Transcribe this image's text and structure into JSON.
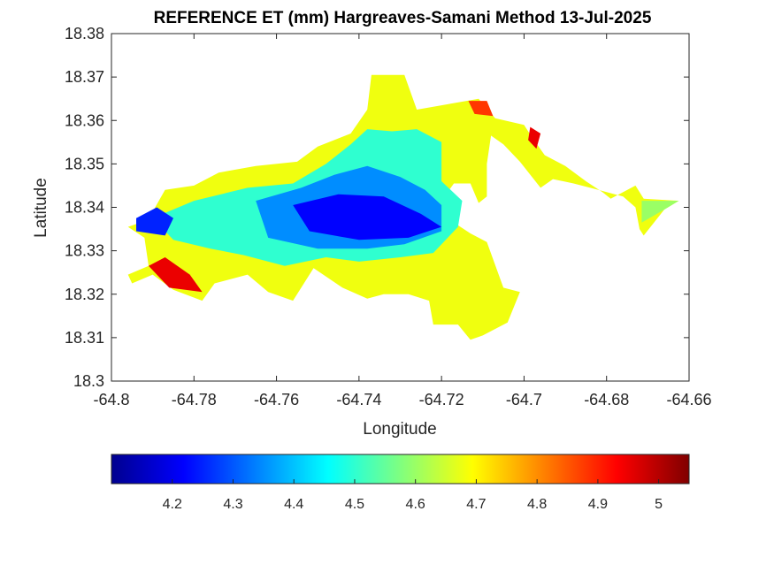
{
  "chart_data": {
    "type": "heatmap",
    "title": "REFERENCE ET (mm) Hargreaves-Samani Method  13-Jul-2025",
    "xlabel": "Longitude",
    "ylabel": "Latitude",
    "xlim": [
      -64.8,
      -64.66
    ],
    "ylim": [
      18.3,
      18.38
    ],
    "xticks": [
      -64.8,
      -64.78,
      -64.76,
      -64.74,
      -64.72,
      -64.7,
      -64.68,
      -64.66
    ],
    "xtick_labels": [
      "-64.8",
      "-64.78",
      "-64.76",
      "-64.74",
      "-64.72",
      "-64.7",
      "-64.68",
      "-64.66"
    ],
    "yticks": [
      18.3,
      18.31,
      18.32,
      18.33,
      18.34,
      18.35,
      18.36,
      18.37,
      18.38
    ],
    "ytick_labels": [
      "18.3",
      "18.31",
      "18.32",
      "18.33",
      "18.34",
      "18.35",
      "18.36",
      "18.37",
      "18.38"
    ],
    "grid": false,
    "colormap": "jet",
    "colorbar": {
      "orientation": "horizontal",
      "placement": "below",
      "range": [
        4.1,
        5.05
      ],
      "ticks": [
        4.2,
        4.3,
        4.4,
        4.5,
        4.6,
        4.7,
        4.8,
        4.9,
        5
      ],
      "tick_labels": [
        "4.2",
        "4.3",
        "4.4",
        "4.5",
        "4.6",
        "4.7",
        "4.8",
        "4.9",
        "5"
      ]
    },
    "regions": [
      {
        "name": "",
        "value": 4.68,
        "polygon": [
          [
            -64.793,
            18.3365
          ],
          [
            -64.79,
            18.339
          ],
          [
            -64.787,
            18.344
          ],
          [
            -64.78,
            18.345
          ],
          [
            -64.774,
            18.348
          ],
          [
            -64.765,
            18.3495
          ],
          [
            -64.755,
            18.3505
          ],
          [
            -64.75,
            18.354
          ],
          [
            -64.742,
            18.357
          ],
          [
            -64.738,
            18.3625
          ],
          [
            -64.737,
            18.3705
          ],
          [
            -64.729,
            18.3705
          ],
          [
            -64.726,
            18.3625
          ],
          [
            -64.72,
            18.3635
          ],
          [
            -64.711,
            18.365
          ],
          [
            -64.707,
            18.3605
          ],
          [
            -64.7,
            18.359
          ],
          [
            -64.698,
            18.356
          ],
          [
            -64.695,
            18.352
          ],
          [
            -64.69,
            18.3495
          ],
          [
            -64.685,
            18.346
          ],
          [
            -64.681,
            18.3435
          ],
          [
            -64.679,
            18.342
          ],
          [
            -64.673,
            18.345
          ],
          [
            -64.671,
            18.342
          ],
          [
            -64.6625,
            18.3415
          ],
          [
            -64.666,
            18.3395
          ],
          [
            -64.671,
            18.3335
          ],
          [
            -64.672,
            18.335
          ],
          [
            -64.673,
            18.34
          ],
          [
            -64.676,
            18.3425
          ],
          [
            -64.682,
            18.344
          ],
          [
            -64.688,
            18.3455
          ],
          [
            -64.693,
            18.3465
          ],
          [
            -64.696,
            18.3445
          ],
          [
            -64.701,
            18.3505
          ],
          [
            -64.705,
            18.3545
          ],
          [
            -64.708,
            18.3565
          ],
          [
            -64.709,
            18.35
          ],
          [
            -64.709,
            18.3425
          ],
          [
            -64.711,
            18.341
          ],
          [
            -64.713,
            18.3455
          ],
          [
            -64.717,
            18.3455
          ],
          [
            -64.72,
            18.3415
          ],
          [
            -64.717,
            18.3365
          ],
          [
            -64.713,
            18.334
          ],
          [
            -64.709,
            18.332
          ],
          [
            -64.705,
            18.3215
          ],
          [
            -64.701,
            18.3205
          ],
          [
            -64.704,
            18.3135
          ],
          [
            -64.71,
            18.3105
          ],
          [
            -64.713,
            18.3095
          ],
          [
            -64.716,
            18.313
          ],
          [
            -64.722,
            18.313
          ],
          [
            -64.723,
            18.3185
          ],
          [
            -64.728,
            18.32
          ],
          [
            -64.734,
            18.32
          ],
          [
            -64.738,
            18.319
          ],
          [
            -64.744,
            18.3215
          ],
          [
            -64.751,
            18.326
          ],
          [
            -64.756,
            18.3185
          ],
          [
            -64.762,
            18.3205
          ],
          [
            -64.767,
            18.3245
          ],
          [
            -64.775,
            18.3225
          ],
          [
            -64.778,
            18.3185
          ],
          [
            -64.785,
            18.321
          ],
          [
            -64.79,
            18.3245
          ],
          [
            -64.795,
            18.3225
          ],
          [
            -64.796,
            18.3245
          ],
          [
            -64.791,
            18.3265
          ],
          [
            -64.792,
            18.333
          ],
          [
            -64.796,
            18.3355
          ]
        ]
      },
      {
        "name": "",
        "value": 4.5,
        "polygon": [
          [
            -64.79,
            18.3375
          ],
          [
            -64.78,
            18.3415
          ],
          [
            -64.767,
            18.3445
          ],
          [
            -64.756,
            18.3455
          ],
          [
            -64.748,
            18.35
          ],
          [
            -64.742,
            18.3545
          ],
          [
            -64.738,
            18.358
          ],
          [
            -64.732,
            18.3575
          ],
          [
            -64.726,
            18.358
          ],
          [
            -64.72,
            18.355
          ],
          [
            -64.72,
            18.346
          ],
          [
            -64.715,
            18.3415
          ],
          [
            -64.716,
            18.3355
          ],
          [
            -64.722,
            18.3295
          ],
          [
            -64.73,
            18.3285
          ],
          [
            -64.74,
            18.3275
          ],
          [
            -64.748,
            18.3285
          ],
          [
            -64.758,
            18.3265
          ],
          [
            -64.768,
            18.329
          ],
          [
            -64.776,
            18.3305
          ],
          [
            -64.785,
            18.3325
          ]
        ]
      },
      {
        "name": "",
        "value": 4.35,
        "polygon": [
          [
            -64.765,
            18.3415
          ],
          [
            -64.754,
            18.3445
          ],
          [
            -64.746,
            18.3475
          ],
          [
            -64.738,
            18.3495
          ],
          [
            -64.73,
            18.347
          ],
          [
            -64.724,
            18.344
          ],
          [
            -64.72,
            18.3405
          ],
          [
            -64.72,
            18.3345
          ],
          [
            -64.729,
            18.3315
          ],
          [
            -64.738,
            18.3305
          ],
          [
            -64.75,
            18.3305
          ],
          [
            -64.762,
            18.333
          ]
        ]
      },
      {
        "name": "",
        "value": 4.22,
        "polygon": [
          [
            -64.756,
            18.3405
          ],
          [
            -64.745,
            18.343
          ],
          [
            -64.734,
            18.3425
          ],
          [
            -64.725,
            18.3385
          ],
          [
            -64.72,
            18.3355
          ],
          [
            -64.728,
            18.333
          ],
          [
            -64.74,
            18.3325
          ],
          [
            -64.752,
            18.3345
          ]
        ]
      },
      {
        "name": "",
        "value": 4.25,
        "polygon": [
          [
            -64.794,
            18.3375
          ],
          [
            -64.789,
            18.34
          ],
          [
            -64.785,
            18.3375
          ],
          [
            -64.787,
            18.3335
          ],
          [
            -64.794,
            18.3345
          ]
        ]
      },
      {
        "name": "",
        "value": 4.95,
        "polygon": [
          [
            -64.791,
            18.3265
          ],
          [
            -64.787,
            18.3285
          ],
          [
            -64.781,
            18.3245
          ],
          [
            -64.778,
            18.3205
          ],
          [
            -64.786,
            18.3215
          ]
        ]
      },
      {
        "name": "",
        "value": 4.88,
        "polygon": [
          [
            -64.7135,
            18.3645
          ],
          [
            -64.709,
            18.3645
          ],
          [
            -64.7075,
            18.361
          ],
          [
            -64.712,
            18.3615
          ]
        ]
      },
      {
        "name": "",
        "value": 4.95,
        "polygon": [
          [
            -64.6985,
            18.3585
          ],
          [
            -64.696,
            18.357
          ],
          [
            -64.697,
            18.3535
          ],
          [
            -64.699,
            18.3555
          ]
        ]
      },
      {
        "name": "",
        "value": 4.6,
        "polygon": [
          [
            -64.6715,
            18.3415
          ],
          [
            -64.6625,
            18.3415
          ],
          [
            -64.666,
            18.3395
          ],
          [
            -64.6715,
            18.3365
          ]
        ]
      }
    ]
  }
}
